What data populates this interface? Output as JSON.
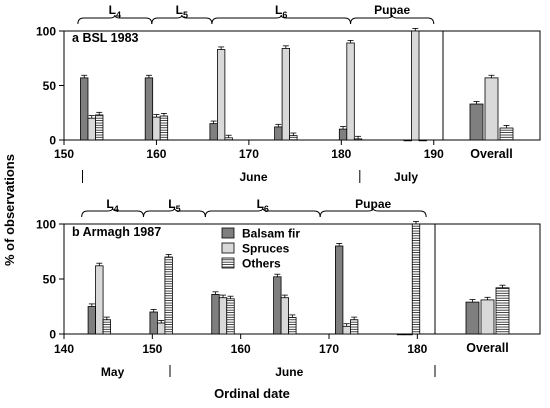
{
  "colors": {
    "balsam_fir": "#7f7f7f",
    "spruces": "#d9d9d9",
    "others": "#ffffff",
    "stroke": "#000000"
  },
  "figure": {
    "ylabel": "% of observations",
    "xlabel": "Ordinal date"
  },
  "legend": {
    "position": "inside panel b, upper middle",
    "items": [
      {
        "name": "Balsam fir",
        "fill": "solid-dark"
      },
      {
        "name": "Spruces",
        "fill": "solid-light"
      },
      {
        "name": "Others",
        "fill": "horizontal-hatch"
      }
    ]
  },
  "chart_data": [
    {
      "type": "bar",
      "panel": "a",
      "title": "BSL 1983",
      "xlim": [
        150,
        191
      ],
      "ylim": [
        0,
        100
      ],
      "xticks": [
        150,
        160,
        170,
        180,
        190
      ],
      "yticks": [
        0,
        50,
        100
      ],
      "month_labels": [
        {
          "label": "June",
          "x": 170.5
        },
        {
          "label": "July",
          "x": 187
        }
      ],
      "month_boundaries": [
        152,
        182
      ],
      "stages": [
        {
          "label": "L",
          "sub": "4",
          "from": 151.5,
          "to": 159.5
        },
        {
          "label": "L",
          "sub": "5",
          "from": 159.5,
          "to": 166
        },
        {
          "label": "L",
          "sub": "6",
          "from": 166,
          "to": 181
        },
        {
          "label": "Pupae",
          "sub": "",
          "from": 181,
          "to": 190
        }
      ],
      "groups": [
        {
          "date": 153,
          "values": {
            "Balsam fir": 57,
            "Spruces": 20,
            "Others": 23
          }
        },
        {
          "date": 160,
          "values": {
            "Balsam fir": 57,
            "Spruces": 21,
            "Others": 22
          }
        },
        {
          "date": 167,
          "values": {
            "Balsam fir": 15,
            "Spruces": 83,
            "Others": 2
          }
        },
        {
          "date": 174,
          "values": {
            "Balsam fir": 12,
            "Spruces": 84,
            "Others": 4
          }
        },
        {
          "date": 181,
          "values": {
            "Balsam fir": 10,
            "Spruces": 89,
            "Others": 1
          }
        },
        {
          "date": 188,
          "values": {
            "Balsam fir": 0,
            "Spruces": 100,
            "Others": 0
          }
        }
      ],
      "overall": {
        "label": "Overall",
        "values": {
          "Balsam fir": 33,
          "Spruces": 57,
          "Others": 11
        }
      }
    },
    {
      "type": "bar",
      "panel": "b",
      "title": "Armagh 1987",
      "xlim": [
        140,
        182
      ],
      "ylim": [
        0,
        100
      ],
      "xticks": [
        140,
        150,
        160,
        170,
        180
      ],
      "yticks": [
        0,
        50,
        100
      ],
      "month_labels": [
        {
          "label": "May",
          "x": 145.5
        },
        {
          "label": "June",
          "x": 165.5
        }
      ],
      "month_boundaries": [
        152,
        182
      ],
      "stages": [
        {
          "label": "L",
          "sub": "4",
          "from": 142,
          "to": 149
        },
        {
          "label": "L",
          "sub": "5",
          "from": 149,
          "to": 156
        },
        {
          "label": "L",
          "sub": "6",
          "from": 156,
          "to": 169
        },
        {
          "label": "Pupae",
          "sub": "",
          "from": 169,
          "to": 181
        }
      ],
      "groups": [
        {
          "date": 144,
          "values": {
            "Balsam fir": 25,
            "Spruces": 62,
            "Others": 13
          }
        },
        {
          "date": 151,
          "values": {
            "Balsam fir": 20,
            "Spruces": 10,
            "Others": 70
          }
        },
        {
          "date": 158,
          "values": {
            "Balsam fir": 36,
            "Spruces": 33,
            "Others": 32
          }
        },
        {
          "date": 165,
          "values": {
            "Balsam fir": 52,
            "Spruces": 33,
            "Others": 15
          }
        },
        {
          "date": 172,
          "values": {
            "Balsam fir": 80,
            "Spruces": 7,
            "Others": 13
          }
        },
        {
          "date": 179,
          "values": {
            "Balsam fir": 0,
            "Spruces": 0,
            "Others": 100
          }
        }
      ],
      "overall": {
        "label": "Overall",
        "values": {
          "Balsam fir": 29,
          "Spruces": 31,
          "Others": 42
        }
      }
    }
  ]
}
